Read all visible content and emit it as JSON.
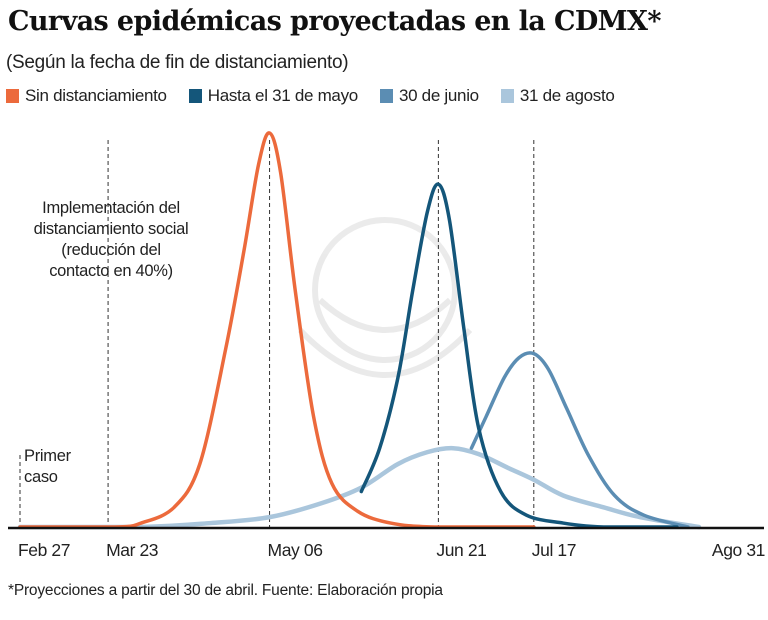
{
  "chart_data": {
    "type": "line",
    "title": "Curvas epidémicas proyectadas en la CDMX*",
    "subtitle": "(Según la fecha de fin de distanciamiento)",
    "footnote": "*Proyecciones a partir del 30 de abril. Fuente: Elaboración propia",
    "x_ticks": [
      {
        "date": "02-27",
        "label": "Feb 27"
      },
      {
        "date": "03-23",
        "label": "Mar 23"
      },
      {
        "date": "05-06",
        "label": "May 06"
      },
      {
        "date": "06-21",
        "label": "Jun 21"
      },
      {
        "date": "07-17",
        "label": "Jul 17"
      },
      {
        "date": "08-31",
        "label": "Ago 31"
      }
    ],
    "xlim": [
      "02-27",
      "08-31"
    ],
    "ylim": [
      0,
      100
    ],
    "y_axis_shown": false,
    "grid": false,
    "legend_placement": "top",
    "reference_lines": [
      "02-27",
      "03-23",
      "05-06",
      "06-21",
      "07-17"
    ],
    "annotations": [
      {
        "id": "primer-caso",
        "lines": [
          "Primer",
          "caso"
        ]
      },
      {
        "id": "implementacion",
        "lines": [
          "Implementación del",
          "distanciamiento social",
          "(reducción del",
          "contacto en 40%)"
        ]
      }
    ],
    "series": [
      {
        "name": "Sin distanciamiento",
        "color": "#ec6a3c",
        "points": [
          [
            "02-27",
            0
          ],
          [
            "03-25",
            0
          ],
          [
            "04-01",
            1
          ],
          [
            "04-10",
            5
          ],
          [
            "04-17",
            16
          ],
          [
            "04-24",
            45
          ],
          [
            "04-29",
            70
          ],
          [
            "05-03",
            92
          ],
          [
            "05-06",
            100
          ],
          [
            "05-09",
            90
          ],
          [
            "05-13",
            60
          ],
          [
            "05-18",
            28
          ],
          [
            "05-23",
            11
          ],
          [
            "05-30",
            4
          ],
          [
            "06-08",
            1
          ],
          [
            "06-20",
            0
          ],
          [
            "07-17",
            0
          ]
        ]
      },
      {
        "name": "Hasta el 31 de mayo",
        "color": "#14567a",
        "points": [
          [
            "05-31",
            9
          ],
          [
            "06-05",
            20
          ],
          [
            "06-10",
            38
          ],
          [
            "06-14",
            60
          ],
          [
            "06-18",
            80
          ],
          [
            "06-21",
            87
          ],
          [
            "06-24",
            78
          ],
          [
            "06-28",
            50
          ],
          [
            "07-02",
            25
          ],
          [
            "07-08",
            9
          ],
          [
            "07-15",
            3
          ],
          [
            "07-25",
            1
          ],
          [
            "08-05",
            0
          ],
          [
            "08-25",
            0
          ]
        ]
      },
      {
        "name": "30 de junio",
        "color": "#5b8db3",
        "points": [
          [
            "06-30",
            20
          ],
          [
            "07-04",
            28
          ],
          [
            "07-09",
            38
          ],
          [
            "07-13",
            43
          ],
          [
            "07-17",
            44
          ],
          [
            "07-21",
            40
          ],
          [
            "07-26",
            30
          ],
          [
            "08-01",
            18
          ],
          [
            "08-08",
            8
          ],
          [
            "08-16",
            3
          ],
          [
            "08-28",
            0
          ]
        ]
      },
      {
        "name": "31 de agosto",
        "color": "#aac6dc",
        "points": [
          [
            "02-27",
            0
          ],
          [
            "04-01",
            0
          ],
          [
            "04-20",
            1
          ],
          [
            "05-06",
            2.5
          ],
          [
            "05-20",
            6
          ],
          [
            "05-31",
            10
          ],
          [
            "06-10",
            16
          ],
          [
            "06-18",
            19
          ],
          [
            "06-25",
            20
          ],
          [
            "07-02",
            18.5
          ],
          [
            "07-10",
            15
          ],
          [
            "07-17",
            12
          ],
          [
            "07-25",
            8
          ],
          [
            "08-05",
            5
          ],
          [
            "08-15",
            2.5
          ],
          [
            "08-31",
            0
          ]
        ]
      }
    ]
  }
}
